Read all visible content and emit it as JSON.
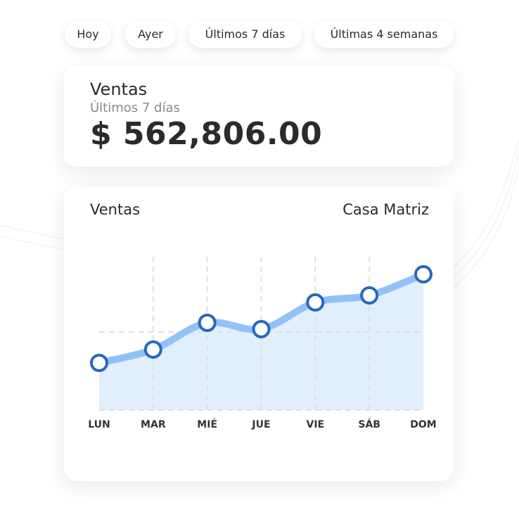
{
  "filters": [
    "Hoy",
    "Ayer",
    "Últimos 7 días",
    "Últimas 4 semanas"
  ],
  "summary": {
    "title": "Ventas",
    "period": "Últimos 7 días",
    "amount": "$ 562,806.00"
  },
  "chart_card": {
    "title": "Ventas",
    "branch": "Casa Matriz"
  },
  "colors": {
    "line": "#90c2f7",
    "fill": "#deedfd",
    "marker": "#2767c0",
    "grid": "#dddfe3"
  },
  "chart_data": {
    "type": "area",
    "categories": [
      "LUN",
      "MAR",
      "MIÉ",
      "JUE",
      "VIE",
      "SÁB",
      "DOM"
    ],
    "values": [
      67,
      86,
      124,
      115,
      153,
      163,
      193
    ],
    "ylim": [
      0,
      218
    ],
    "grid": true,
    "title": "",
    "xlabel": "",
    "ylabel": ""
  }
}
